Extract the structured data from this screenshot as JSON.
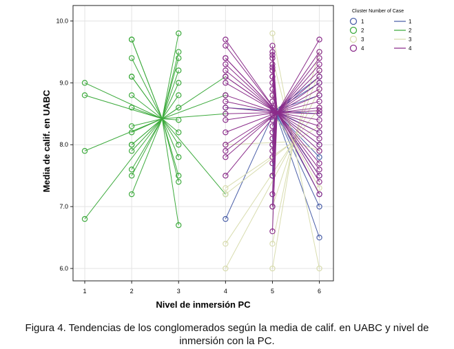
{
  "chart_data": {
    "type": "scatter",
    "xlabel": "Nivel de inmersión PC",
    "ylabel": "Media de calif. en UABC",
    "xlim": [
      0.75,
      6.3
    ],
    "ylim": [
      5.8,
      10.25
    ],
    "xticks": [
      1,
      2,
      3,
      4,
      5,
      6
    ],
    "yticks": [
      6.0,
      7.0,
      8.0,
      9.0,
      10.0
    ],
    "ytick_labels": [
      "6.0",
      "7.0",
      "8.0",
      "9.0",
      "10.0"
    ],
    "grid": true,
    "legend": {
      "title": "Cluster Number of Case",
      "placement": "top-right",
      "point_labels": [
        "1",
        "2",
        "3",
        "4"
      ],
      "line_labels": [
        "1",
        "2",
        "3",
        "4"
      ]
    },
    "series": [
      {
        "name": "1",
        "color": "#4a5fa8",
        "centroid": [
          5.05,
          8.55
        ],
        "x": [
          4,
          4,
          5,
          5,
          5,
          6,
          6,
          6,
          6,
          6,
          6,
          6,
          6,
          6,
          6,
          6
        ],
        "y": [
          6.8,
          8.6,
          7.0,
          7.5,
          8.0,
          6.5,
          7.0,
          7.2,
          7.5,
          7.8,
          8.0,
          8.2,
          8.5,
          8.8,
          9.0,
          9.1
        ]
      },
      {
        "name": "2",
        "color": "#3caa3c",
        "centroid": [
          2.65,
          8.42
        ],
        "x": [
          1,
          1,
          1,
          1,
          2,
          2,
          2,
          2,
          2,
          2,
          2,
          2,
          2,
          2,
          2,
          2,
          2,
          2,
          2,
          3,
          3,
          3,
          3,
          3,
          3,
          3,
          3,
          3,
          3,
          3,
          3,
          3,
          3,
          4,
          4,
          4,
          4
        ],
        "y": [
          6.8,
          7.9,
          8.8,
          9.0,
          7.2,
          7.5,
          7.6,
          7.9,
          8.0,
          8.2,
          8.3,
          8.6,
          8.8,
          9.1,
          9.4,
          9.7,
          9.7,
          8.0,
          9.1,
          6.7,
          7.4,
          7.5,
          7.8,
          8.0,
          8.2,
          8.4,
          8.6,
          8.8,
          9.0,
          9.2,
          9.4,
          9.5,
          9.8,
          7.2,
          8.5,
          8.8,
          9.1
        ]
      },
      {
        "name": "3",
        "color": "#d8dcae",
        "centroid": [
          5.45,
          8.05
        ],
        "x": [
          4,
          4,
          4,
          4,
          4,
          5,
          5,
          5,
          5,
          5,
          5,
          5,
          6,
          6,
          6,
          6,
          6,
          6,
          6,
          6
        ],
        "y": [
          6.0,
          6.4,
          7.2,
          7.3,
          8.0,
          6.0,
          6.4,
          7.0,
          8.5,
          8.8,
          9.4,
          9.8,
          6.0,
          7.3,
          7.9,
          8.3,
          8.6,
          8.9,
          9.2,
          9.5
        ]
      },
      {
        "name": "4",
        "color": "#8a2c8a",
        "centroid": [
          5.1,
          8.52
        ],
        "x": [
          4,
          4,
          4,
          4,
          4,
          4,
          4,
          4,
          4,
          4,
          4,
          4,
          4,
          4,
          4,
          4,
          4,
          4,
          4,
          5,
          5,
          5,
          5,
          5,
          5,
          5,
          5,
          5,
          5,
          5,
          5,
          5,
          5,
          5,
          5,
          5,
          5,
          5,
          5,
          5,
          5,
          5,
          5,
          5,
          5,
          5,
          5,
          6,
          6,
          6,
          6,
          6,
          6,
          6,
          6,
          6,
          6,
          6,
          6,
          6,
          6,
          6,
          6,
          6,
          6,
          6,
          6,
          6,
          6,
          6,
          6
        ],
        "y": [
          7.5,
          7.8,
          7.9,
          8.0,
          8.2,
          8.4,
          8.5,
          8.6,
          8.7,
          8.8,
          9.0,
          9.1,
          9.2,
          9.3,
          9.4,
          9.4,
          9.6,
          9.7,
          9.1,
          6.6,
          7.0,
          7.2,
          7.5,
          7.7,
          7.9,
          8.0,
          8.1,
          8.2,
          8.3,
          8.4,
          8.5,
          8.6,
          8.7,
          8.8,
          8.9,
          9.0,
          9.1,
          9.2,
          9.3,
          9.4,
          9.5,
          9.6,
          7.8,
          8.6,
          9.1,
          9.25,
          9.45,
          7.2,
          7.4,
          7.5,
          7.7,
          7.9,
          8.0,
          8.2,
          8.3,
          8.4,
          8.5,
          8.6,
          8.7,
          8.8,
          8.9,
          9.0,
          9.1,
          9.2,
          9.3,
          9.4,
          9.5,
          9.7,
          8.1,
          8.55,
          7.6
        ]
      }
    ]
  },
  "caption": {
    "line1": "Figura 4. Tendencias de los conglomerados según la media de calif. en UABC y nivel de",
    "line2": "inmersión con la PC."
  }
}
